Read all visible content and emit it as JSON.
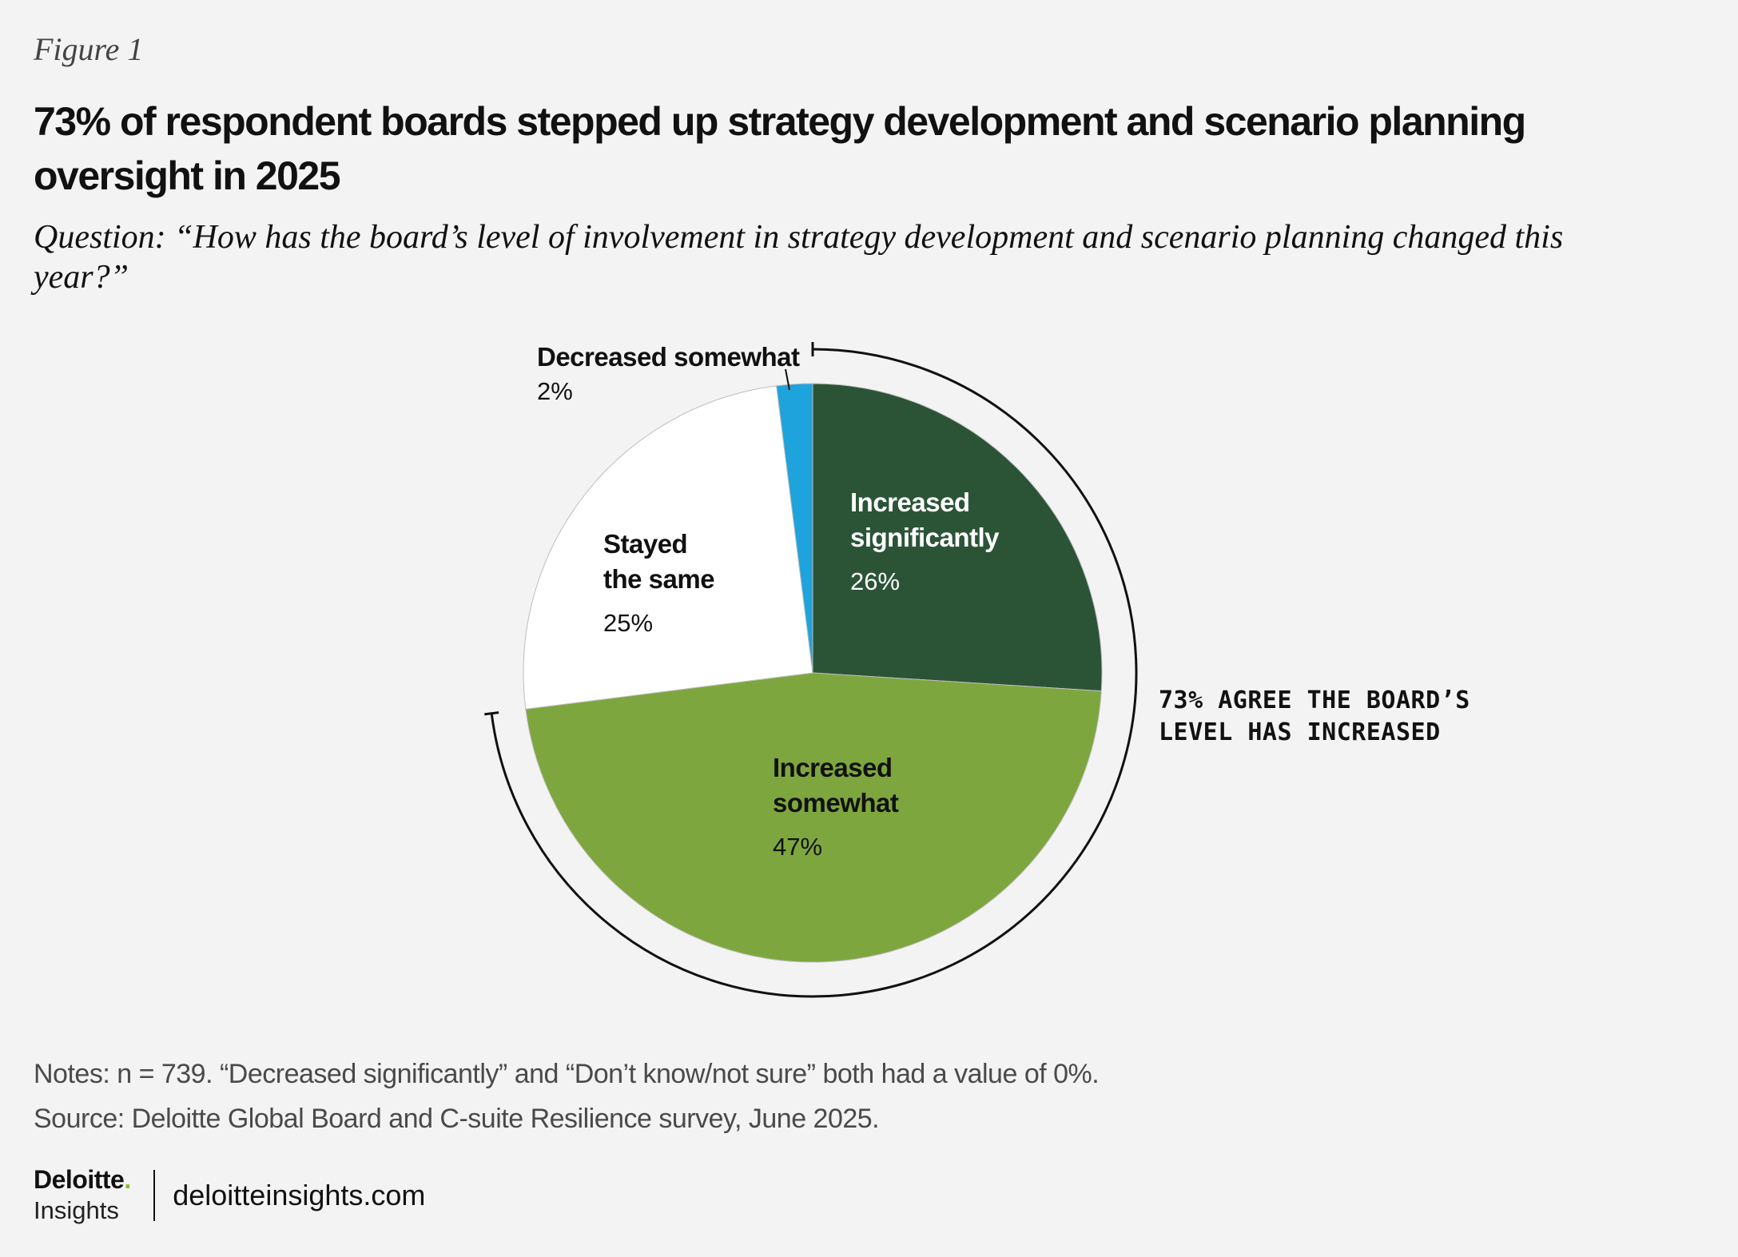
{
  "figure_label": "Figure 1",
  "title": "73% of respondent boards stepped up strategy development and scenario planning oversight in 2025",
  "question": "Question: “How has the board’s level of involvement in strategy development and scenario planning changed this year?”",
  "chart_data": {
    "type": "pie",
    "slices": [
      {
        "label_lines": [
          "Increased",
          "significantly"
        ],
        "value": 26,
        "display": "26%",
        "color": "#2b5437",
        "text_color": "#ffffff"
      },
      {
        "label_lines": [
          "Increased",
          "somewhat"
        ],
        "value": 47,
        "display": "47%",
        "color": "#7ea63e",
        "text_color": "#111111"
      },
      {
        "label_lines": [
          "Stayed",
          "the same"
        ],
        "value": 25,
        "display": "25%",
        "color": "#ffffff",
        "text_color": "#111111"
      },
      {
        "label_lines": [
          "Decreased somewhat"
        ],
        "value": 2,
        "display": "2%",
        "color": "#1ea3dc",
        "text_color": "#111111"
      }
    ],
    "annotation": {
      "lines": [
        "73% AGREE THE BOARD’S",
        "LEVEL HAS INCREASED"
      ],
      "value": 73
    }
  },
  "notes": "Notes: n = 739. “Decreased significantly” and “Don’t know/not sure” both had a value of 0%.",
  "source": "Source: Deloitte Global Board and C-suite Resilience survey, June 2025.",
  "footer": {
    "brand": "Deloitte",
    "brand_dot": ".",
    "brand_sub": "Insights",
    "site": "deloitteinsights.com"
  }
}
